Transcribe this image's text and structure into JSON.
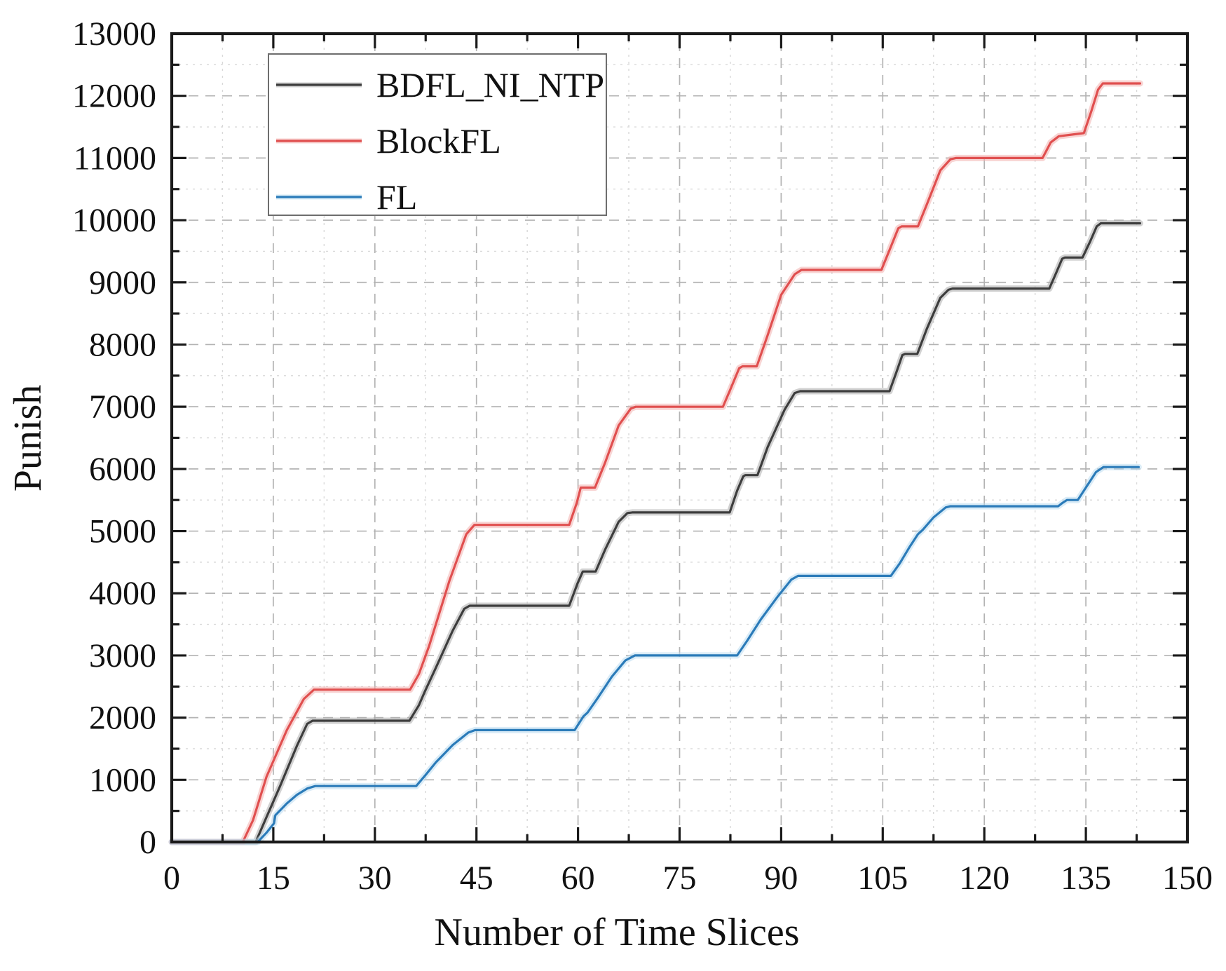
{
  "figure": {
    "xlabel": "Number of Time Slices",
    "ylabel": "Punish"
  },
  "legend": {
    "position": "upper-left",
    "items": [
      {
        "label": "BDFL_NI_NTP"
      },
      {
        "label": "BlockFL"
      },
      {
        "label": "FL"
      }
    ]
  },
  "chart_data": {
    "type": "line",
    "title": "",
    "xlabel": "Number of Time Slices",
    "ylabel": "Punish",
    "xlim": [
      0,
      150
    ],
    "ylim": [
      0,
      13000
    ],
    "x_major_ticks": [
      0,
      15,
      30,
      45,
      60,
      75,
      90,
      105,
      120,
      135,
      150
    ],
    "x_tick_labels": [
      "0",
      "15",
      "30",
      "45",
      "60",
      "75",
      "90",
      "105",
      "120",
      "135",
      "150"
    ],
    "x_minor_tick_step": 7.5,
    "y_major_ticks": [
      0,
      1000,
      2000,
      3000,
      4000,
      5000,
      6000,
      7000,
      8000,
      9000,
      10000,
      11000,
      12000,
      13000
    ],
    "y_tick_labels": [
      "0",
      "1000",
      "2000",
      "3000",
      "4000",
      "5000",
      "6000",
      "7000",
      "8000",
      "9000",
      "10000",
      "11000",
      "12000",
      "13000"
    ],
    "y_minor_tick_step": 500,
    "grid": {
      "major": true,
      "minor": true,
      "style": "dashed"
    },
    "legend_position": "upper-left",
    "series": [
      {
        "name": "BDFL_NI_NTP",
        "color": "#3d3d3d",
        "halo": "#ababab",
        "points": [
          [
            0,
            0
          ],
          [
            12.4,
            0
          ],
          [
            14,
            400
          ],
          [
            16,
            900
          ],
          [
            18.5,
            1550
          ],
          [
            20,
            1900
          ],
          [
            20.8,
            1950
          ],
          [
            35.1,
            1950
          ],
          [
            36.5,
            2200
          ],
          [
            37.3,
            2400
          ],
          [
            39,
            2800
          ],
          [
            41.5,
            3400
          ],
          [
            43.2,
            3750
          ],
          [
            44,
            3800
          ],
          [
            58.7,
            3800
          ],
          [
            59.9,
            4150
          ],
          [
            60.7,
            4350
          ],
          [
            62.6,
            4350
          ],
          [
            64,
            4700
          ],
          [
            66,
            5150
          ],
          [
            67.3,
            5290
          ],
          [
            68,
            5300
          ],
          [
            82.4,
            5300
          ],
          [
            83.5,
            5650
          ],
          [
            84.4,
            5880
          ],
          [
            84.7,
            5900
          ],
          [
            86.5,
            5900
          ],
          [
            88,
            6350
          ],
          [
            90.5,
            6950
          ],
          [
            92,
            7220
          ],
          [
            92.8,
            7250
          ],
          [
            106,
            7250
          ],
          [
            107,
            7550
          ],
          [
            107.9,
            7830
          ],
          [
            108.3,
            7850
          ],
          [
            110.1,
            7850
          ],
          [
            111.5,
            8250
          ],
          [
            113.5,
            8750
          ],
          [
            114.7,
            8880
          ],
          [
            115.3,
            8900
          ],
          [
            129.6,
            8900
          ],
          [
            130.6,
            9150
          ],
          [
            131.5,
            9380
          ],
          [
            131.9,
            9400
          ],
          [
            134.5,
            9400
          ],
          [
            135.6,
            9650
          ],
          [
            136.6,
            9900
          ],
          [
            137.2,
            9950
          ],
          [
            143,
            9950
          ]
        ]
      },
      {
        "name": "BlockFL",
        "color": "#e04f4f",
        "halo": "#f2b1ae",
        "points": [
          [
            0,
            0
          ],
          [
            10.5,
            0
          ],
          [
            12,
            350
          ],
          [
            14,
            1050
          ],
          [
            17,
            1800
          ],
          [
            19.5,
            2300
          ],
          [
            21,
            2450
          ],
          [
            35.2,
            2450
          ],
          [
            36.5,
            2700
          ],
          [
            38,
            3150
          ],
          [
            41,
            4200
          ],
          [
            43.5,
            4950
          ],
          [
            44.7,
            5100
          ],
          [
            58.7,
            5100
          ],
          [
            59.8,
            5450
          ],
          [
            60.4,
            5700
          ],
          [
            62.5,
            5700
          ],
          [
            64,
            6100
          ],
          [
            66,
            6700
          ],
          [
            67.8,
            6970
          ],
          [
            68.5,
            7000
          ],
          [
            81.4,
            7000
          ],
          [
            82.5,
            7280
          ],
          [
            83.8,
            7620
          ],
          [
            84.3,
            7650
          ],
          [
            86.4,
            7650
          ],
          [
            88,
            8150
          ],
          [
            90,
            8800
          ],
          [
            92,
            9130
          ],
          [
            93,
            9200
          ],
          [
            104.8,
            9200
          ],
          [
            106,
            9520
          ],
          [
            107.3,
            9870
          ],
          [
            107.8,
            9900
          ],
          [
            110.2,
            9900
          ],
          [
            111.5,
            10250
          ],
          [
            113.5,
            10800
          ],
          [
            115,
            10980
          ],
          [
            115.8,
            11000
          ],
          [
            128.6,
            11000
          ],
          [
            129.8,
            11250
          ],
          [
            131,
            11350
          ],
          [
            134.7,
            11400
          ],
          [
            135.8,
            11750
          ],
          [
            136.8,
            12100
          ],
          [
            137.5,
            12200
          ],
          [
            143,
            12200
          ]
        ]
      },
      {
        "name": "FL",
        "color": "#2b7bb9",
        "halo": "#bcdcf1",
        "points": [
          [
            0,
            0
          ],
          [
            12.7,
            0
          ],
          [
            14,
            150
          ],
          [
            15.1,
            300
          ],
          [
            15.3,
            430
          ],
          [
            17,
            620
          ],
          [
            18.5,
            760
          ],
          [
            20,
            860
          ],
          [
            21.2,
            900
          ],
          [
            36.1,
            900
          ],
          [
            37.5,
            1080
          ],
          [
            39,
            1280
          ],
          [
            41.5,
            1560
          ],
          [
            43.8,
            1760
          ],
          [
            44.8,
            1800
          ],
          [
            59.5,
            1800
          ],
          [
            60.8,
            2020
          ],
          [
            61.4,
            2080
          ],
          [
            63,
            2330
          ],
          [
            65,
            2660
          ],
          [
            67,
            2920
          ],
          [
            68.4,
            3000
          ],
          [
            83.5,
            3000
          ],
          [
            85,
            3240
          ],
          [
            87,
            3580
          ],
          [
            89.5,
            3950
          ],
          [
            91.5,
            4220
          ],
          [
            92.5,
            4280
          ],
          [
            106.2,
            4280
          ],
          [
            107.5,
            4480
          ],
          [
            109,
            4750
          ],
          [
            110.2,
            4950
          ],
          [
            110.9,
            5020
          ],
          [
            112.5,
            5220
          ],
          [
            114.3,
            5380
          ],
          [
            115,
            5400
          ],
          [
            130.9,
            5400
          ],
          [
            131.5,
            5450
          ],
          [
            132.2,
            5500
          ],
          [
            133.8,
            5500
          ],
          [
            135,
            5700
          ],
          [
            136.5,
            5950
          ],
          [
            137.6,
            6030
          ],
          [
            142.8,
            6030
          ]
        ]
      }
    ]
  }
}
